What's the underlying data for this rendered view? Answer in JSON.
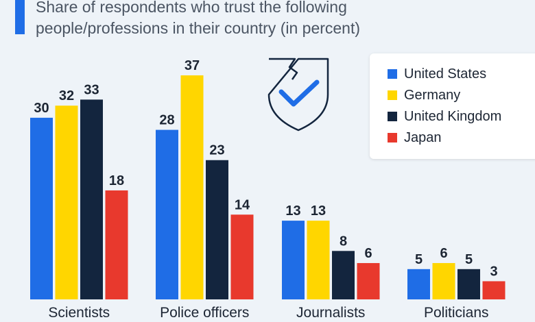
{
  "subtitle": {
    "line1": "Share of respondents who trust the following",
    "line2": "people/professions in their country (in percent)"
  },
  "colors": {
    "United States": "#1f6de6",
    "Germany": "#ffd600",
    "United Kingdom": "#13253e",
    "Japan": "#e8392d"
  },
  "icon": "shield-check-icon",
  "chart_data": {
    "type": "bar",
    "title": "Share of respondents who trust the following people/professions in their country (in percent)",
    "categories": [
      "Scientists",
      "Police officers",
      "Journalists",
      "Politicians"
    ],
    "series": [
      {
        "name": "United States",
        "values": [
          30,
          28,
          13,
          5
        ]
      },
      {
        "name": "Germany",
        "values": [
          32,
          37,
          13,
          6
        ]
      },
      {
        "name": "United Kingdom",
        "values": [
          33,
          23,
          8,
          5
        ]
      },
      {
        "name": "Japan",
        "values": [
          18,
          14,
          6,
          3
        ]
      }
    ],
    "ylim": [
      0,
      37
    ],
    "xlabel": "",
    "ylabel": "",
    "grid": false,
    "legend": "top-right"
  }
}
